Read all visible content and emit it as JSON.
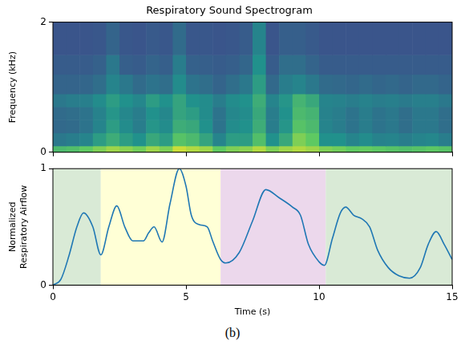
{
  "chart_data": [
    {
      "type": "heatmap",
      "title": "Respiratory Sound Spectrogram",
      "ylabel": "Frequency (kHz)",
      "xlim": [
        0,
        15
      ],
      "xticks": [
        0,
        5,
        10,
        15
      ],
      "ylim": [
        0,
        2
      ],
      "yticks": [
        0,
        2
      ],
      "grid": false,
      "tick_labels": "y",
      "x_bins": [
        0,
        0.5,
        1,
        1.5,
        2,
        2.5,
        3,
        3.5,
        4,
        4.5,
        5,
        5.5,
        6,
        6.5,
        7,
        7.5,
        8,
        8.5,
        9,
        9.5,
        10,
        10.5,
        11,
        11.5,
        12,
        12.5,
        13,
        13.5,
        14,
        14.5,
        15
      ],
      "y_bins": [
        0,
        0.1,
        0.3,
        0.5,
        0.7,
        0.9,
        1.2,
        1.5,
        2
      ],
      "cells": [
        [
          0.68,
          0.7,
          0.75,
          0.8,
          0.85,
          0.82,
          0.78,
          0.85,
          0.8,
          0.92,
          0.88,
          0.85,
          0.75,
          0.8,
          0.82,
          0.88,
          0.8,
          0.85,
          0.88,
          0.85,
          0.8,
          0.78,
          0.75,
          0.76,
          0.74,
          0.72,
          0.7,
          0.72,
          0.74,
          0.72
        ],
        [
          0.4,
          0.42,
          0.45,
          0.55,
          0.62,
          0.55,
          0.5,
          0.6,
          0.55,
          0.72,
          0.68,
          0.58,
          0.45,
          0.55,
          0.55,
          0.7,
          0.5,
          0.6,
          0.8,
          0.75,
          0.5,
          0.5,
          0.45,
          0.48,
          0.44,
          0.45,
          0.42,
          0.45,
          0.46,
          0.42
        ],
        [
          0.34,
          0.35,
          0.38,
          0.45,
          0.55,
          0.48,
          0.42,
          0.52,
          0.48,
          0.62,
          0.6,
          0.5,
          0.38,
          0.48,
          0.5,
          0.62,
          0.42,
          0.52,
          0.72,
          0.68,
          0.45,
          0.42,
          0.38,
          0.42,
          0.38,
          0.4,
          0.36,
          0.4,
          0.4,
          0.36
        ],
        [
          0.35,
          0.36,
          0.38,
          0.44,
          0.52,
          0.46,
          0.42,
          0.5,
          0.46,
          0.58,
          0.55,
          0.48,
          0.38,
          0.46,
          0.48,
          0.6,
          0.42,
          0.5,
          0.68,
          0.65,
          0.44,
          0.42,
          0.38,
          0.42,
          0.38,
          0.4,
          0.36,
          0.4,
          0.4,
          0.36
        ],
        [
          0.4,
          0.42,
          0.43,
          0.48,
          0.55,
          0.5,
          0.46,
          0.55,
          0.5,
          0.58,
          0.5,
          0.48,
          0.42,
          0.48,
          0.5,
          0.62,
          0.45,
          0.52,
          0.65,
          0.6,
          0.45,
          0.44,
          0.42,
          0.44,
          0.42,
          0.43,
          0.41,
          0.43,
          0.43,
          0.4
        ],
        [
          0.32,
          0.32,
          0.33,
          0.36,
          0.45,
          0.4,
          0.35,
          0.38,
          0.36,
          0.48,
          0.38,
          0.36,
          0.32,
          0.36,
          0.4,
          0.55,
          0.34,
          0.42,
          0.45,
          0.4,
          0.35,
          0.34,
          0.33,
          0.35,
          0.33,
          0.34,
          0.32,
          0.34,
          0.34,
          0.32
        ],
        [
          0.29,
          0.29,
          0.29,
          0.31,
          0.4,
          0.3,
          0.29,
          0.32,
          0.3,
          0.42,
          0.31,
          0.3,
          0.29,
          0.3,
          0.33,
          0.5,
          0.29,
          0.36,
          0.36,
          0.32,
          0.29,
          0.29,
          0.29,
          0.29,
          0.29,
          0.29,
          0.29,
          0.29,
          0.29,
          0.29
        ],
        [
          0.26,
          0.26,
          0.26,
          0.27,
          0.32,
          0.27,
          0.26,
          0.28,
          0.27,
          0.35,
          0.27,
          0.27,
          0.26,
          0.27,
          0.29,
          0.45,
          0.26,
          0.3,
          0.3,
          0.28,
          0.26,
          0.26,
          0.26,
          0.26,
          0.26,
          0.26,
          0.26,
          0.26,
          0.26,
          0.26
        ]
      ]
    },
    {
      "type": "line",
      "xlabel": "Time (s)",
      "ylabel": "Normalized Respiratory Airflow",
      "xlim": [
        0,
        15
      ],
      "xticks": [
        0,
        5,
        10,
        15
      ],
      "ylim": [
        0,
        1
      ],
      "yticks": [
        0,
        1
      ],
      "grid": false,
      "color": "#1f77b4",
      "x": [
        0,
        0.3,
        0.6,
        0.9,
        1.15,
        1.5,
        1.8,
        2.1,
        2.4,
        2.7,
        3.0,
        3.4,
        3.6,
        3.8,
        4.1,
        4.4,
        4.75,
        5.0,
        5.2,
        5.5,
        5.8,
        6.0,
        6.3,
        6.5,
        7.0,
        7.5,
        8.0,
        8.5,
        9.0,
        9.3,
        9.6,
        10.0,
        10.2,
        10.5,
        10.8,
        11.0,
        11.3,
        11.6,
        11.9,
        12.2,
        12.6,
        13.0,
        13.4,
        13.8,
        14.1,
        14.4,
        14.7,
        15
      ],
      "values": [
        0,
        0.05,
        0.25,
        0.5,
        0.62,
        0.5,
        0.26,
        0.5,
        0.68,
        0.5,
        0.38,
        0.38,
        0.45,
        0.5,
        0.37,
        0.7,
        1.0,
        0.85,
        0.6,
        0.52,
        0.5,
        0.38,
        0.22,
        0.19,
        0.28,
        0.55,
        0.82,
        0.75,
        0.67,
        0.6,
        0.35,
        0.2,
        0.17,
        0.4,
        0.62,
        0.67,
        0.6,
        0.57,
        0.5,
        0.3,
        0.15,
        0.08,
        0.06,
        0.15,
        0.35,
        0.46,
        0.35,
        0.22
      ],
      "regions": [
        {
          "xmin": 0,
          "xmax": 1.8,
          "color": "#d9ead6"
        },
        {
          "xmin": 1.8,
          "xmax": 6.3,
          "color": "#ffffd6"
        },
        {
          "xmin": 6.3,
          "xmax": 10.25,
          "color": "#ecd8ec"
        },
        {
          "xmin": 10.25,
          "xmax": 15,
          "color": "#d9ead6"
        }
      ],
      "caption": "(b)"
    }
  ]
}
